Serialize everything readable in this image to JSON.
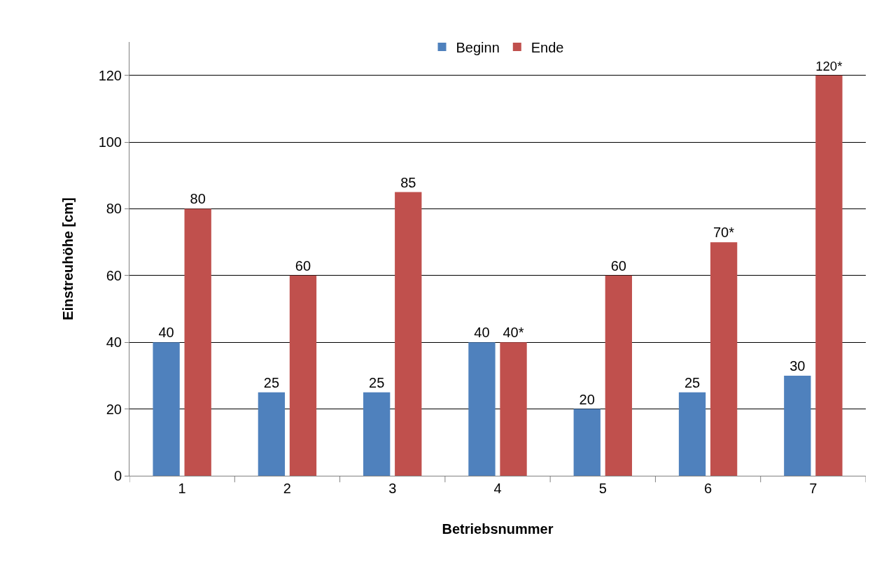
{
  "chart_data": {
    "type": "bar",
    "xlabel": "Betriebsnummer",
    "ylabel": "Einstreuhöhe [cm]",
    "categories": [
      "1",
      "2",
      "3",
      "4",
      "5",
      "6",
      "7"
    ],
    "series": [
      {
        "name": "Beginn",
        "color": "#4f81bd",
        "values": [
          40,
          25,
          25,
          40,
          20,
          25,
          30
        ],
        "value_labels": [
          "40",
          "25",
          "25",
          "40",
          "20",
          "25",
          "30"
        ]
      },
      {
        "name": "Ende",
        "color": "#c0504d",
        "values": [
          80,
          60,
          85,
          40,
          60,
          70,
          120
        ],
        "value_labels": [
          "80",
          "60",
          "85",
          "40*",
          "60",
          "70*",
          "120*"
        ]
      }
    ],
    "ylim": [
      0,
      130
    ],
    "yticks": [
      0,
      20,
      40,
      60,
      80,
      100,
      120
    ],
    "grid": "y",
    "legend": "top"
  }
}
